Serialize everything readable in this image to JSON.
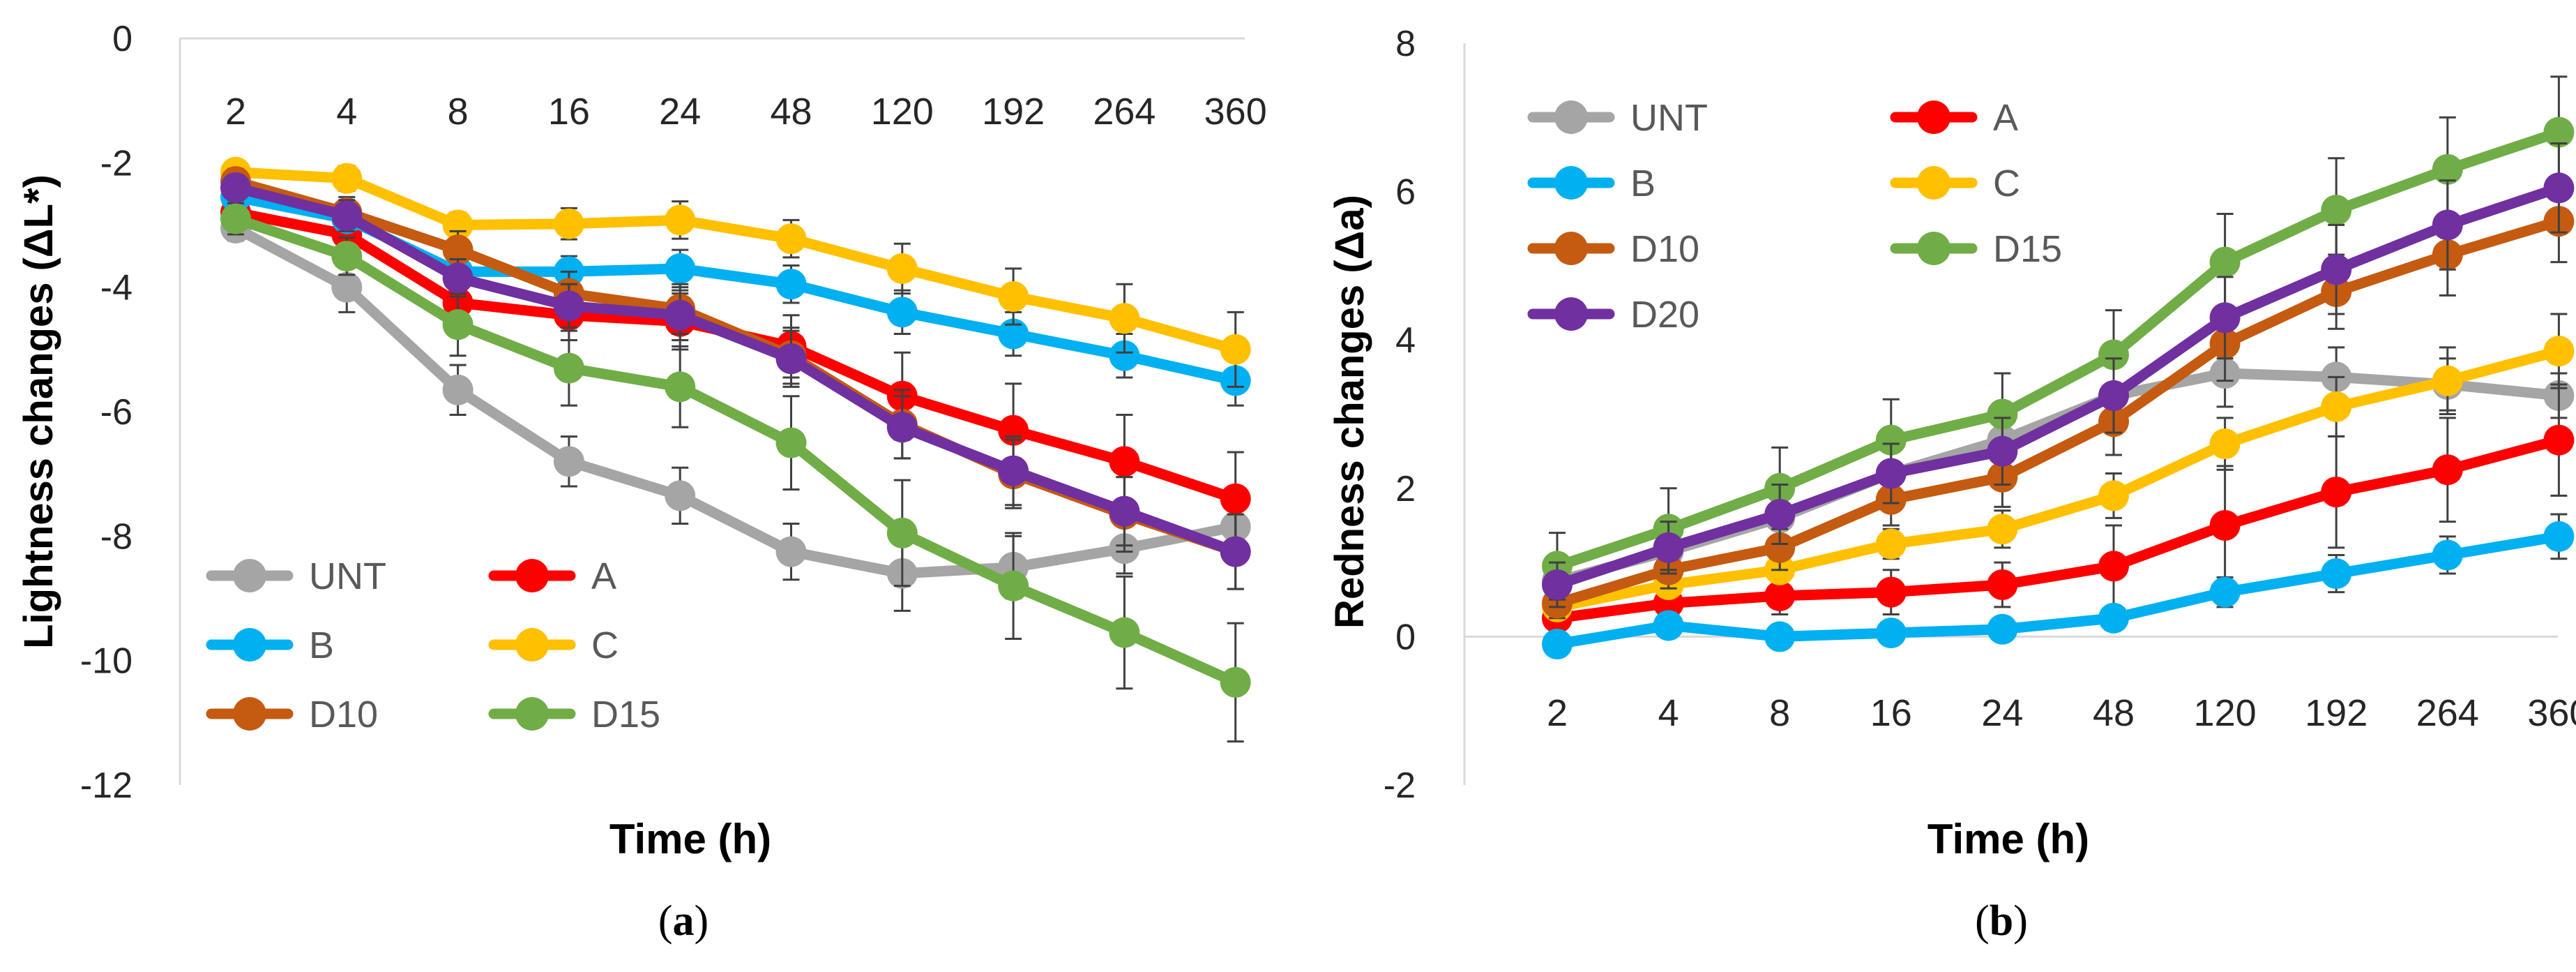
{
  "chart_data": [
    {
      "type": "line",
      "panel_label": "(a)",
      "panel_letter": "a",
      "xlabel": "Time (h)",
      "ylabel": "Lightness changes (ΔL*)",
      "categories": [
        "2",
        "4",
        "8",
        "16",
        "24",
        "48",
        "120",
        "192",
        "264",
        "360"
      ],
      "ylim": [
        -12,
        0
      ],
      "yticks": [
        0,
        -2,
        -4,
        -6,
        -8,
        -10,
        -12
      ],
      "x_tick_position": "top",
      "grid": false,
      "legend_position": "bottom-left",
      "series": [
        {
          "name": "UNT",
          "color": "#A5A5A5",
          "values": [
            -3.05,
            -4.0,
            -5.65,
            -6.8,
            -7.35,
            -8.25,
            -8.6,
            -8.5,
            -8.2,
            -7.85
          ],
          "errors": [
            0.2,
            0.4,
            0.4,
            0.4,
            0.45,
            0.45,
            0.6,
            0.5,
            0.4,
            0.3
          ]
        },
        {
          "name": "A",
          "color": "#FF0000",
          "values": [
            -2.8,
            -3.15,
            -4.25,
            -4.45,
            -4.55,
            -4.95,
            -5.75,
            -6.3,
            -6.8,
            -7.4
          ],
          "errors": [
            0.2,
            0.3,
            0.35,
            0.4,
            0.45,
            0.5,
            0.7,
            0.75,
            0.75,
            0.75
          ]
        },
        {
          "name": "B",
          "color": "#00B0F0",
          "values": [
            -2.55,
            -2.9,
            -3.75,
            -3.75,
            -3.7,
            -3.95,
            -4.4,
            -4.75,
            -5.1,
            -5.5
          ],
          "errors": [
            0.15,
            0.2,
            0.25,
            0.25,
            0.3,
            0.3,
            0.35,
            0.35,
            0.35,
            0.4
          ]
        },
        {
          "name": "C",
          "color": "#FFC000",
          "values": [
            -2.15,
            -2.25,
            -3.0,
            -2.98,
            -2.92,
            -3.22,
            -3.7,
            -4.15,
            -4.5,
            -5.0
          ],
          "errors": [
            0.15,
            0.2,
            0.2,
            0.25,
            0.3,
            0.3,
            0.4,
            0.45,
            0.55,
            0.6
          ]
        },
        {
          "name": "D10",
          "color": "#C55A11",
          "values": [
            -2.3,
            -2.8,
            -3.4,
            -4.1,
            -4.35,
            -5.1,
            -6.2,
            -7.0,
            -7.65,
            -8.25
          ],
          "errors": [
            0.2,
            0.25,
            0.3,
            0.35,
            0.4,
            0.45,
            0.55,
            0.55,
            0.6,
            0.6
          ]
        },
        {
          "name": "D15",
          "color": "#70AD47",
          "values": [
            -2.9,
            -3.5,
            -4.6,
            -5.3,
            -5.6,
            -6.5,
            -7.95,
            -8.8,
            -9.55,
            -10.35
          ],
          "errors": [
            0.25,
            0.3,
            0.5,
            0.6,
            0.65,
            0.75,
            0.85,
            0.85,
            0.9,
            0.95
          ]
        },
        {
          "name": "D20",
          "color": "#7030A0",
          "values": [
            -2.4,
            -2.85,
            -3.85,
            -4.3,
            -4.45,
            -5.15,
            -6.25,
            -6.95,
            -7.6,
            -8.25
          ],
          "errors": [
            0.2,
            0.25,
            0.3,
            0.35,
            0.4,
            0.45,
            0.5,
            0.55,
            0.55,
            0.6
          ],
          "in_legend": false
        }
      ]
    },
    {
      "type": "line",
      "panel_label": "(b)",
      "panel_letter": "b",
      "xlabel": "Time (h)",
      "ylabel": "Redness changes (Δa)",
      "categories": [
        "2",
        "4",
        "8",
        "16",
        "24",
        "48",
        "120",
        "192",
        "264",
        "360"
      ],
      "ylim": [
        -2,
        8
      ],
      "yticks": [
        8,
        6,
        4,
        2,
        0,
        -2
      ],
      "x_tick_position": "bottom",
      "grid": false,
      "legend_position": "top-left",
      "series": [
        {
          "name": "UNT",
          "color": "#A5A5A5",
          "values": [
            0.75,
            1.15,
            1.6,
            2.2,
            2.65,
            3.25,
            3.55,
            3.5,
            3.4,
            3.25
          ],
          "errors": [
            0.15,
            0.2,
            0.25,
            0.3,
            0.35,
            0.4,
            0.45,
            0.4,
            0.35,
            0.3
          ]
        },
        {
          "name": "A",
          "color": "#FF0000",
          "values": [
            0.25,
            0.45,
            0.55,
            0.6,
            0.7,
            0.95,
            1.5,
            1.95,
            2.25,
            2.65
          ],
          "errors": [
            0.15,
            0.2,
            0.25,
            0.3,
            0.3,
            0.55,
            0.8,
            0.75,
            0.7,
            0.75
          ]
        },
        {
          "name": "B",
          "color": "#00B0F0",
          "values": [
            -0.1,
            0.15,
            0.0,
            0.05,
            0.1,
            0.25,
            0.6,
            0.85,
            1.1,
            1.35
          ],
          "errors": [
            0.1,
            0.1,
            0.1,
            0.1,
            0.1,
            0.15,
            0.2,
            0.25,
            0.25,
            0.3
          ]
        },
        {
          "name": "C",
          "color": "#FFC000",
          "values": [
            0.4,
            0.7,
            0.9,
            1.25,
            1.45,
            1.9,
            2.6,
            3.1,
            3.45,
            3.85
          ],
          "errors": [
            0.1,
            0.15,
            0.15,
            0.2,
            0.25,
            0.3,
            0.35,
            0.4,
            0.45,
            0.5
          ]
        },
        {
          "name": "D10",
          "color": "#C55A11",
          "values": [
            0.45,
            0.9,
            1.2,
            1.85,
            2.15,
            2.9,
            3.95,
            4.65,
            5.15,
            5.6
          ],
          "errors": [
            0.2,
            0.25,
            0.3,
            0.35,
            0.4,
            0.45,
            0.5,
            0.5,
            0.55,
            0.55
          ]
        },
        {
          "name": "D15",
          "color": "#70AD47",
          "values": [
            0.95,
            1.45,
            2.0,
            2.65,
            3.0,
            3.8,
            5.05,
            5.75,
            6.3,
            6.8
          ],
          "errors": [
            0.45,
            0.55,
            0.55,
            0.55,
            0.55,
            0.6,
            0.65,
            0.7,
            0.7,
            0.75
          ]
        },
        {
          "name": "D20",
          "color": "#7030A0",
          "values": [
            0.7,
            1.2,
            1.65,
            2.2,
            2.5,
            3.25,
            4.3,
            4.95,
            5.55,
            6.05
          ],
          "errors": [
            0.3,
            0.35,
            0.4,
            0.4,
            0.45,
            0.5,
            0.55,
            0.6,
            0.6,
            0.6
          ]
        }
      ]
    }
  ]
}
